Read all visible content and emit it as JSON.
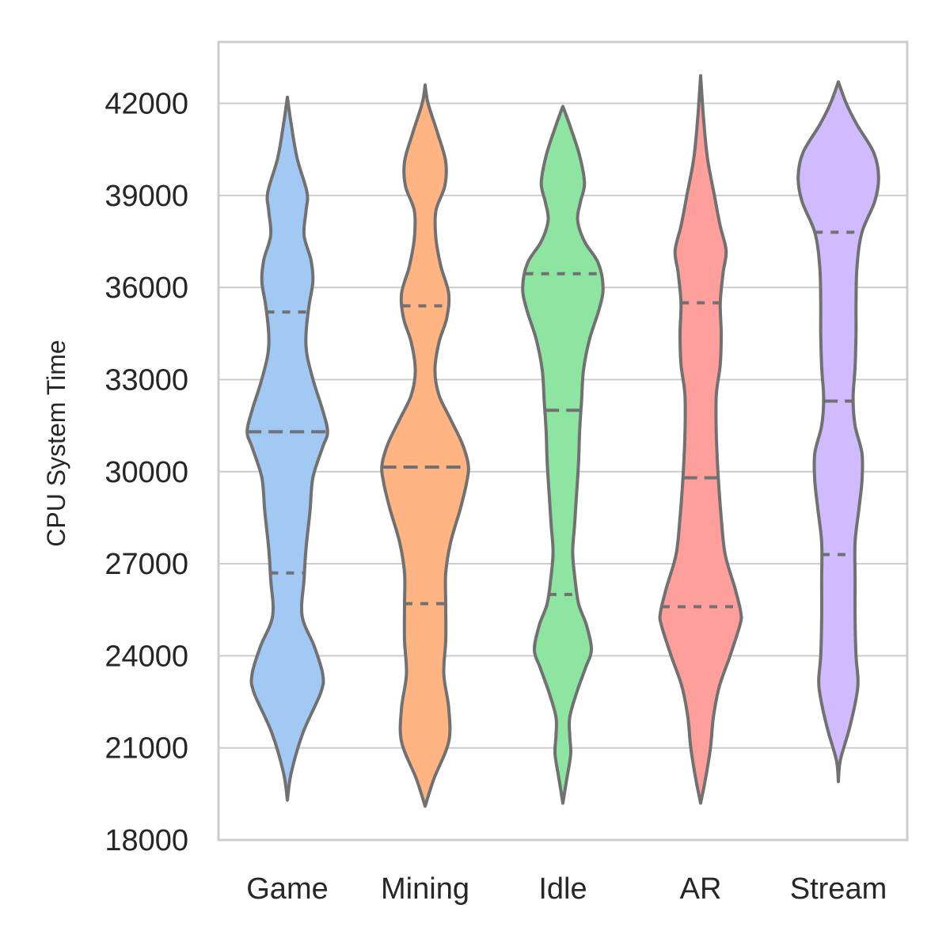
{
  "chart_data": {
    "type": "violin",
    "title": "",
    "xlabel": "",
    "ylabel": "CPU System Time",
    "ylim": [
      18000,
      44000
    ],
    "yticks": [
      18000,
      21000,
      24000,
      27000,
      30000,
      33000,
      36000,
      39000,
      42000
    ],
    "grid": "horizontal",
    "categories": [
      "Game",
      "Mining",
      "Idle",
      "AR",
      "Stream"
    ],
    "colors": {
      "Game": "#a1c9f4",
      "Mining": "#ffb482",
      "Idle": "#8de5a1",
      "AR": "#ff9f9b",
      "Stream": "#d0bbff",
      "outline": "#717171",
      "grid": "#cccccc",
      "frame": "#cccccc"
    },
    "series": [
      {
        "category": "Game",
        "min": 19300,
        "max": 42200,
        "quartiles": [
          26700,
          31300,
          35200
        ],
        "density": [
          [
            19300,
            0.0
          ],
          [
            20200,
            0.08
          ],
          [
            21500,
            0.32
          ],
          [
            22800,
            0.68
          ],
          [
            23400,
            0.72
          ],
          [
            24300,
            0.55
          ],
          [
            25300,
            0.3
          ],
          [
            26500,
            0.34
          ],
          [
            27500,
            0.38
          ],
          [
            28700,
            0.46
          ],
          [
            29800,
            0.52
          ],
          [
            30800,
            0.72
          ],
          [
            31300,
            0.82
          ],
          [
            32000,
            0.72
          ],
          [
            32900,
            0.54
          ],
          [
            33800,
            0.4
          ],
          [
            34500,
            0.38
          ],
          [
            35400,
            0.44
          ],
          [
            36200,
            0.52
          ],
          [
            36900,
            0.48
          ],
          [
            37700,
            0.34
          ],
          [
            38500,
            0.38
          ],
          [
            39100,
            0.4
          ],
          [
            40200,
            0.2
          ],
          [
            41300,
            0.08
          ],
          [
            42200,
            0.0
          ]
        ]
      },
      {
        "category": "Mining",
        "min": 19100,
        "max": 42600,
        "quartiles": [
          25700,
          30150,
          35400
        ],
        "density": [
          [
            19100,
            0.0
          ],
          [
            20000,
            0.18
          ],
          [
            21200,
            0.48
          ],
          [
            22300,
            0.48
          ],
          [
            23400,
            0.38
          ],
          [
            24500,
            0.42
          ],
          [
            25700,
            0.42
          ],
          [
            26700,
            0.42
          ],
          [
            27700,
            0.52
          ],
          [
            28800,
            0.72
          ],
          [
            29600,
            0.84
          ],
          [
            30200,
            0.88
          ],
          [
            30900,
            0.76
          ],
          [
            31700,
            0.52
          ],
          [
            32500,
            0.28
          ],
          [
            33300,
            0.2
          ],
          [
            34200,
            0.28
          ],
          [
            35000,
            0.44
          ],
          [
            35800,
            0.48
          ],
          [
            36700,
            0.32
          ],
          [
            37600,
            0.22
          ],
          [
            38500,
            0.22
          ],
          [
            39300,
            0.4
          ],
          [
            40100,
            0.42
          ],
          [
            41000,
            0.26
          ],
          [
            42000,
            0.06
          ],
          [
            42600,
            0.0
          ]
        ]
      },
      {
        "category": "Idle",
        "min": 19200,
        "max": 41900,
        "quartiles": [
          26000,
          32000,
          36450
        ],
        "density": [
          [
            19200,
            0.0
          ],
          [
            20000,
            0.08
          ],
          [
            20800,
            0.16
          ],
          [
            21400,
            0.14
          ],
          [
            22000,
            0.14
          ],
          [
            22800,
            0.28
          ],
          [
            23600,
            0.46
          ],
          [
            24200,
            0.58
          ],
          [
            25000,
            0.48
          ],
          [
            25700,
            0.32
          ],
          [
            26600,
            0.24
          ],
          [
            27400,
            0.2
          ],
          [
            28300,
            0.24
          ],
          [
            29300,
            0.28
          ],
          [
            30300,
            0.32
          ],
          [
            31300,
            0.34
          ],
          [
            32300,
            0.38
          ],
          [
            33300,
            0.42
          ],
          [
            34300,
            0.54
          ],
          [
            35300,
            0.74
          ],
          [
            36000,
            0.82
          ],
          [
            36800,
            0.72
          ],
          [
            37500,
            0.44
          ],
          [
            38200,
            0.3
          ],
          [
            38800,
            0.36
          ],
          [
            39400,
            0.44
          ],
          [
            40300,
            0.34
          ],
          [
            41200,
            0.16
          ],
          [
            41900,
            0.0
          ]
        ]
      },
      {
        "category": "AR",
        "min": 19200,
        "max": 42900,
        "quartiles": [
          25600,
          29800,
          35500
        ],
        "density": [
          [
            19200,
            0.0
          ],
          [
            20000,
            0.1
          ],
          [
            21000,
            0.2
          ],
          [
            22000,
            0.26
          ],
          [
            23000,
            0.38
          ],
          [
            24000,
            0.6
          ],
          [
            25000,
            0.8
          ],
          [
            25400,
            0.82
          ],
          [
            26200,
            0.7
          ],
          [
            27300,
            0.5
          ],
          [
            28500,
            0.42
          ],
          [
            29800,
            0.36
          ],
          [
            31200,
            0.32
          ],
          [
            32500,
            0.32
          ],
          [
            33500,
            0.4
          ],
          [
            34500,
            0.42
          ],
          [
            35500,
            0.4
          ],
          [
            36500,
            0.46
          ],
          [
            37200,
            0.52
          ],
          [
            38000,
            0.4
          ],
          [
            39000,
            0.28
          ],
          [
            40200,
            0.14
          ],
          [
            41500,
            0.06
          ],
          [
            42900,
            0.0
          ]
        ]
      },
      {
        "category": "Stream",
        "min": 19900,
        "max": 42700,
        "quartiles": [
          27300,
          32300,
          37800
        ],
        "density": [
          [
            19900,
            0.0
          ],
          [
            20600,
            0.04
          ],
          [
            21600,
            0.22
          ],
          [
            22600,
            0.36
          ],
          [
            23200,
            0.4
          ],
          [
            24000,
            0.36
          ],
          [
            25200,
            0.34
          ],
          [
            26500,
            0.34
          ],
          [
            27700,
            0.34
          ],
          [
            28800,
            0.42
          ],
          [
            29700,
            0.48
          ],
          [
            30600,
            0.48
          ],
          [
            31500,
            0.34
          ],
          [
            32400,
            0.3
          ],
          [
            33400,
            0.34
          ],
          [
            34500,
            0.36
          ],
          [
            35500,
            0.36
          ],
          [
            36700,
            0.38
          ],
          [
            37800,
            0.48
          ],
          [
            38800,
            0.74
          ],
          [
            39600,
            0.82
          ],
          [
            40400,
            0.72
          ],
          [
            41300,
            0.38
          ],
          [
            42000,
            0.16
          ],
          [
            42700,
            0.0
          ]
        ]
      }
    ]
  }
}
